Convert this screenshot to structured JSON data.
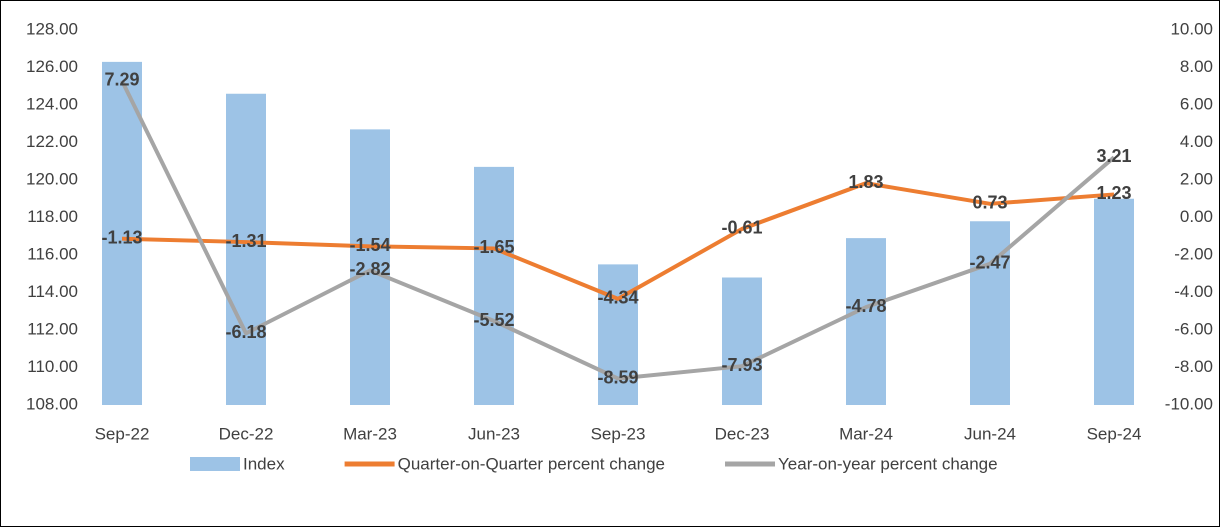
{
  "chart_data": {
    "type": "bar-line",
    "categories": [
      "Sep-22",
      "Dec-22",
      "Mar-23",
      "Jun-23",
      "Sep-23",
      "Dec-23",
      "Mar-24",
      "Jun-24",
      "Sep-24"
    ],
    "series": [
      {
        "name": "Index",
        "type": "bar",
        "color": "#9dc3e6",
        "values": [
          126.3,
          124.6,
          122.7,
          120.7,
          115.5,
          114.8,
          116.9,
          117.8,
          119.0
        ]
      },
      {
        "name": "Quarter-on-Quarter percent change",
        "type": "line",
        "axis": "y2",
        "color": "#ed7d31",
        "values": [
          -1.13,
          -1.31,
          -1.54,
          -1.65,
          -4.34,
          -0.61,
          1.83,
          0.73,
          1.23
        ]
      },
      {
        "name": "Year-on-year percent change",
        "type": "line",
        "axis": "y2",
        "color": "#a5a5a5",
        "values": [
          7.29,
          -6.18,
          -2.82,
          -5.52,
          -8.59,
          -7.93,
          -4.78,
          -2.47,
          3.21
        ]
      }
    ],
    "ylim": [
      108,
      128
    ],
    "yticks": [
      {
        "value": 108,
        "label": "108.00"
      },
      {
        "value": 110,
        "label": "110.00"
      },
      {
        "value": 112,
        "label": "112.00"
      },
      {
        "value": 114,
        "label": "114.00"
      },
      {
        "value": 116,
        "label": "116.00"
      },
      {
        "value": 118,
        "label": "118.00"
      },
      {
        "value": 120,
        "label": "120.00"
      },
      {
        "value": 122,
        "label": "122.00"
      },
      {
        "value": 124,
        "label": "124.00"
      },
      {
        "value": 126,
        "label": "126.00"
      },
      {
        "value": 128,
        "label": "128.00"
      }
    ],
    "y2lim": [
      -10,
      10
    ],
    "y2ticks": [
      {
        "value": -10,
        "label": "-10.00"
      },
      {
        "value": -8,
        "label": "-8.00"
      },
      {
        "value": -6,
        "label": "-6.00"
      },
      {
        "value": -4,
        "label": "-4.00"
      },
      {
        "value": -2,
        "label": "-2.00"
      },
      {
        "value": 0,
        "label": "0.00"
      },
      {
        "value": 2,
        "label": "2.00"
      },
      {
        "value": 4,
        "label": "4.00"
      },
      {
        "value": 6,
        "label": "6.00"
      },
      {
        "value": 8,
        "label": "8.00"
      },
      {
        "value": 10,
        "label": "10.00"
      }
    ],
    "legend": "bottom"
  }
}
